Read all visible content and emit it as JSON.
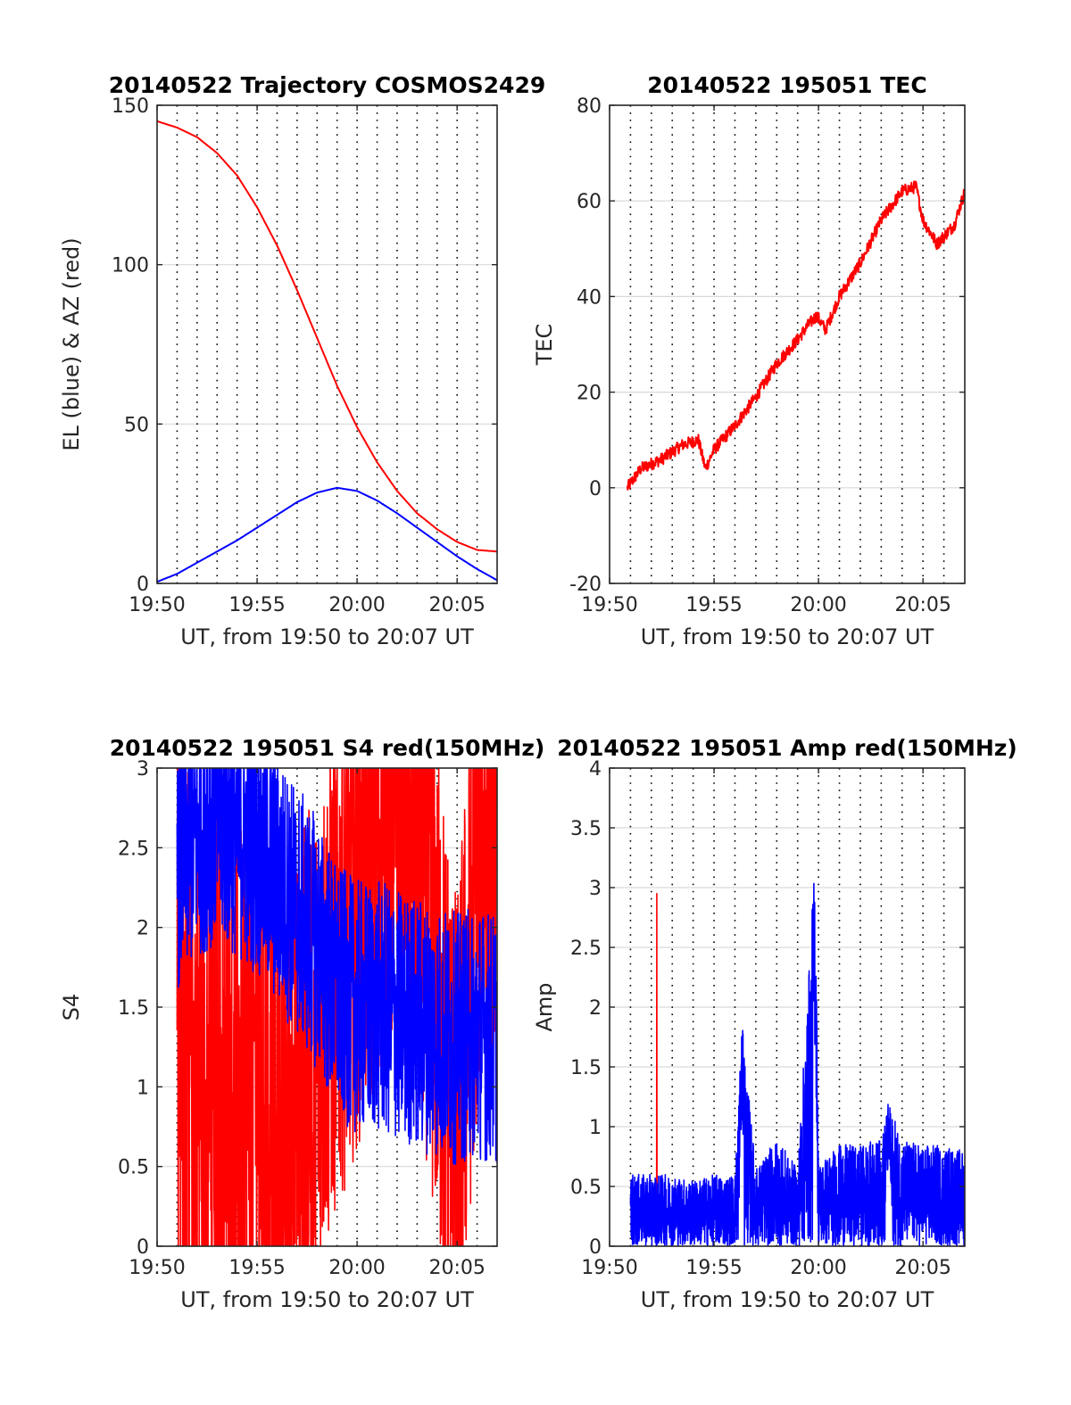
{
  "colors": {
    "az": "#ff0000",
    "el": "#0000ff",
    "tec": "#ff0000",
    "red": "#ff0000",
    "blue": "#0000ff",
    "grid": "#d9d9d9",
    "axis": "#262626"
  },
  "chart_data": [
    {
      "type": "line",
      "title": "20140522 Trajectory COSMOS2429",
      "xlabel": "UT, from 19:50 to 20:07 UT",
      "ylabel": "EL (blue) & AZ (red)",
      "xlim": [
        "19:50",
        "20:07"
      ],
      "ylim": [
        0,
        150
      ],
      "xticks": [
        "19:50",
        "19:55",
        "20:00",
        "20:05"
      ],
      "yticks": [
        "0",
        "50",
        "100",
        "150"
      ],
      "grid": "y-solid, x-dotted-per-minute",
      "series": [
        {
          "name": "AZ (red)",
          "color": "#ff0000",
          "x": [
            "19:50",
            "19:51",
            "19:52",
            "19:53",
            "19:54",
            "19:55",
            "19:56",
            "19:57",
            "19:58",
            "19:59",
            "20:00",
            "20:01",
            "20:02",
            "20:03",
            "20:04",
            "20:05",
            "20:06",
            "20:07"
          ],
          "y": [
            145,
            143,
            140,
            135,
            128,
            118,
            106,
            92,
            77,
            62,
            49,
            38,
            29,
            22,
            17,
            13,
            10.5,
            10
          ]
        },
        {
          "name": "EL (blue)",
          "color": "#0000ff",
          "x": [
            "19:50",
            "19:51",
            "19:52",
            "19:53",
            "19:54",
            "19:55",
            "19:56",
            "19:57",
            "19:58",
            "19:59",
            "20:00",
            "20:01",
            "20:02",
            "20:03",
            "20:04",
            "20:05",
            "20:06",
            "20:07"
          ],
          "y": [
            0.5,
            3,
            6.5,
            10,
            13.5,
            17.5,
            21.5,
            25.5,
            28.5,
            30,
            29,
            26,
            22,
            17.5,
            13,
            8.5,
            4.5,
            1
          ]
        }
      ]
    },
    {
      "type": "line",
      "title": "20140522 195051 TEC",
      "xlabel": "UT, from 19:50 to 20:07 UT",
      "ylabel": "TEC",
      "xlim": [
        "19:50",
        "20:07"
      ],
      "ylim": [
        -20,
        80
      ],
      "xticks": [
        "19:50",
        "19:55",
        "20:00",
        "20:05"
      ],
      "yticks": [
        "-20",
        "0",
        "20",
        "40",
        "60",
        "80"
      ],
      "grid": "y-solid, x-dotted-per-minute",
      "series": [
        {
          "name": "TEC",
          "color": "#ff0000",
          "x": [
            "19:50:51",
            "19:51:30",
            "19:52:30",
            "19:53:30",
            "19:54:15",
            "19:54:35",
            "19:55:00",
            "19:56:00",
            "19:57:00",
            "19:58:00",
            "19:59:00",
            "19:59:30",
            "19:59:55",
            "20:00:20",
            "20:01:00",
            "20:02:00",
            "20:03:00",
            "20:04:00",
            "20:04:40",
            "20:05:00",
            "20:05:40",
            "20:06:30",
            "20:07:00"
          ],
          "y": [
            0,
            4,
            6,
            9,
            10,
            4,
            8,
            13,
            19,
            26,
            31,
            34,
            36,
            33,
            40,
            47,
            56,
            62,
            63,
            56,
            51,
            55,
            62
          ]
        }
      ]
    },
    {
      "type": "line",
      "title": "20140522 195051 S4 red(150MHz)",
      "xlabel": "UT, from 19:50 to 20:07 UT",
      "ylabel": "S4",
      "xlim": [
        "19:50",
        "20:07"
      ],
      "ylim": [
        0,
        3
      ],
      "xticks": [
        "19:50",
        "19:55",
        "20:00",
        "20:05"
      ],
      "yticks": [
        "0",
        "0.5",
        "1",
        "1.5",
        "2",
        "2.5",
        "3"
      ],
      "grid": "y-solid, x-dotted-per-minute",
      "series": [
        {
          "name": "red",
          "color": "#ff0000",
          "x": [
            "19:51",
            "19:52",
            "19:53",
            "19:54",
            "19:55",
            "19:56",
            "19:57",
            "19:58",
            "19:59",
            "20:00",
            "20:01",
            "20:02",
            "20:03",
            "20:04",
            "20:05",
            "20:06",
            "20:07"
          ],
          "y": [
            1.6,
            1.2,
            1.3,
            1.0,
            1.2,
            0.9,
            1.0,
            1.3,
            1.8,
            2.2,
            2.6,
            2.8,
            2.6,
            1.6,
            0.6,
            2.4,
            2.9
          ]
        },
        {
          "name": "blue",
          "color": "#0000ff",
          "x": [
            "19:51",
            "19:52",
            "19:53",
            "19:54",
            "19:55",
            "19:56",
            "19:57",
            "19:58",
            "19:59",
            "20:00",
            "20:01",
            "20:02",
            "20:03",
            "20:04",
            "20:05",
            "20:06",
            "20:07"
          ],
          "y": [
            2.4,
            2.6,
            2.7,
            2.6,
            2.5,
            2.3,
            2.1,
            1.9,
            1.6,
            1.5,
            1.5,
            1.45,
            1.4,
            1.35,
            1.3,
            1.35,
            1.3
          ]
        }
      ]
    },
    {
      "type": "line",
      "title": "20140522 195051 Amp red(150MHz)",
      "xlabel": "UT, from 19:50 to 20:07 UT",
      "ylabel": "Amp",
      "xlim": [
        "19:50",
        "20:07"
      ],
      "ylim": [
        0,
        4
      ],
      "xticks": [
        "19:50",
        "19:55",
        "20:00",
        "20:05"
      ],
      "yticks": [
        "0",
        "0.5",
        "1",
        "1.5",
        "2",
        "2.5",
        "3",
        "3.5",
        "4"
      ],
      "grid": "y-solid, x-dotted-per-minute",
      "series": [
        {
          "name": "red",
          "color": "#ff0000",
          "x": [
            "19:52:15"
          ],
          "y": [
            2.95
          ]
        },
        {
          "name": "blue",
          "color": "#0000ff",
          "x": [
            "19:51",
            "19:52",
            "19:53",
            "19:54",
            "19:55",
            "19:56",
            "19:56:20",
            "19:57",
            "19:58",
            "19:59",
            "19:59:50",
            "20:00",
            "20:01",
            "20:02",
            "20:03",
            "20:03:20",
            "20:04",
            "20:05",
            "20:06",
            "20:07"
          ],
          "y": [
            0.6,
            0.6,
            0.6,
            0.55,
            0.6,
            0.6,
            1.87,
            0.65,
            0.9,
            0.65,
            3.27,
            0.7,
            0.85,
            0.85,
            0.9,
            1.2,
            0.9,
            0.85,
            0.85,
            0.8
          ]
        }
      ]
    }
  ]
}
